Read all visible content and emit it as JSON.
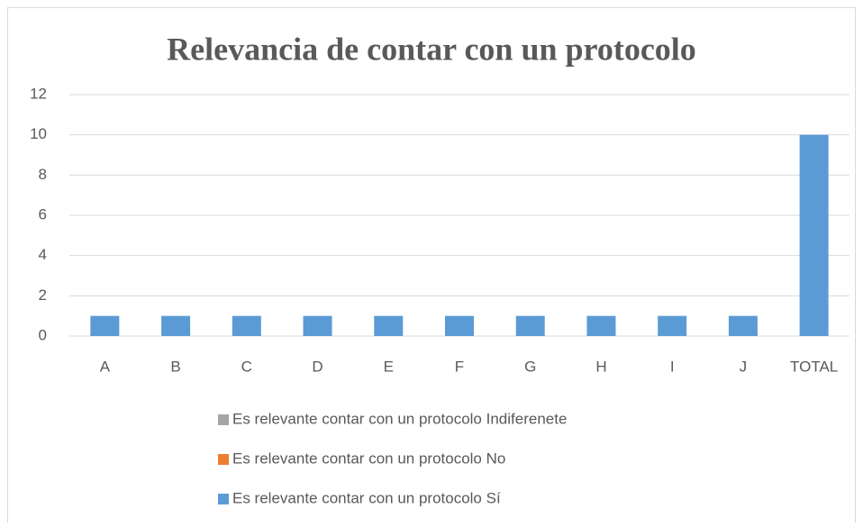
{
  "chart_data": {
    "type": "stacked_bar",
    "title": "Relevancia de contar con un protocolo",
    "categories": [
      "A",
      "B",
      "C",
      "D",
      "E",
      "F",
      "G",
      "H",
      "I",
      "J",
      "TOTAL"
    ],
    "series": [
      {
        "name": "Es relevante contar con un protocolo Indiferenete",
        "color": "#a5a5a5",
        "values": [
          0,
          0,
          0,
          0,
          0,
          0,
          0,
          0,
          0,
          0,
          0
        ]
      },
      {
        "name": "Es relevante contar con un protocolo No",
        "color": "#ed7d31",
        "values": [
          0,
          0,
          0,
          0,
          0,
          0,
          0,
          0,
          0,
          0,
          0
        ]
      },
      {
        "name": "Es relevante contar con un protocolo Sí",
        "color": "#5b9bd5",
        "values": [
          1,
          1,
          1,
          1,
          1,
          1,
          1,
          1,
          1,
          1,
          10
        ]
      }
    ],
    "ylim": [
      0,
      12
    ],
    "yticks": [
      0,
      2,
      4,
      6,
      8,
      10,
      12
    ],
    "grid": true,
    "legend": "bottom"
  }
}
